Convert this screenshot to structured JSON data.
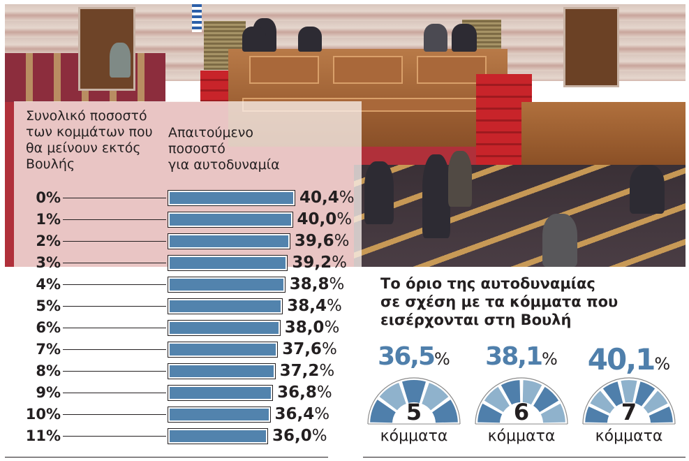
{
  "left_panel": {
    "heading_left": [
      "Συνολικό ποσοστό",
      "των κομμάτων που",
      "θα μείνουν εκτός",
      "Βουλής"
    ],
    "heading_right": [
      "Απαιτούμενο",
      "ποσοστό",
      "για αυτοδυναμία"
    ]
  },
  "right_panel": {
    "title": [
      "Το όριο της αυτοδυναμίας",
      "σε σχέση με τα κόμματα που",
      "εισέρχονται στη Βουλή"
    ],
    "gauges": [
      {
        "value": "36,5",
        "sign": "%",
        "count": "5",
        "unit": "κόμματα",
        "segments": 5
      },
      {
        "value": "38,1",
        "sign": "%",
        "count": "6",
        "unit": "κόμματα",
        "segments": 6
      },
      {
        "value": "40,1",
        "sign": "%",
        "count": "7",
        "unit": "κόμματα",
        "segments": 7
      }
    ]
  },
  "colors": {
    "bar_fill": "#5283ad",
    "gauge_dark": "#4f7fab",
    "gauge_light": "#8fb2cc",
    "text": "#231f20"
  },
  "chart_data": [
    {
      "type": "bar",
      "orientation": "horizontal",
      "title": "Απαιτούμενο ποσοστό για αυτοδυναμία",
      "xlabel": "Απαιτούμενο ποσοστό για αυτοδυναμία",
      "ylabel": "Συνολικό ποσοστό των κομμάτων που θα μείνουν εκτός Βουλής",
      "categories": [
        "0%",
        "1%",
        "2%",
        "3%",
        "4%",
        "5%",
        "6%",
        "7%",
        "8%",
        "9%",
        "10%",
        "11%"
      ],
      "values": [
        40.4,
        40.0,
        39.6,
        39.2,
        38.8,
        38.4,
        38.0,
        37.6,
        37.2,
        36.8,
        36.4,
        36.0
      ],
      "labels": [
        "40,4",
        "40,0",
        "39,6",
        "39,2",
        "38,8",
        "38,4",
        "38,0",
        "37,6",
        "37,2",
        "36,8",
        "36,4",
        "36,0"
      ],
      "unit": "%",
      "grid": false,
      "legend": null
    },
    {
      "type": "gauge",
      "title": "Το όριο της αυτοδυναμίας σε σχέση με τα κόμματα που εισέρχονται στη Βουλή",
      "categories": [
        "5 κόμματα",
        "6 κόμματα",
        "7 κόμματα"
      ],
      "values": [
        36.5,
        38.1,
        40.1
      ],
      "unit": "%"
    }
  ]
}
